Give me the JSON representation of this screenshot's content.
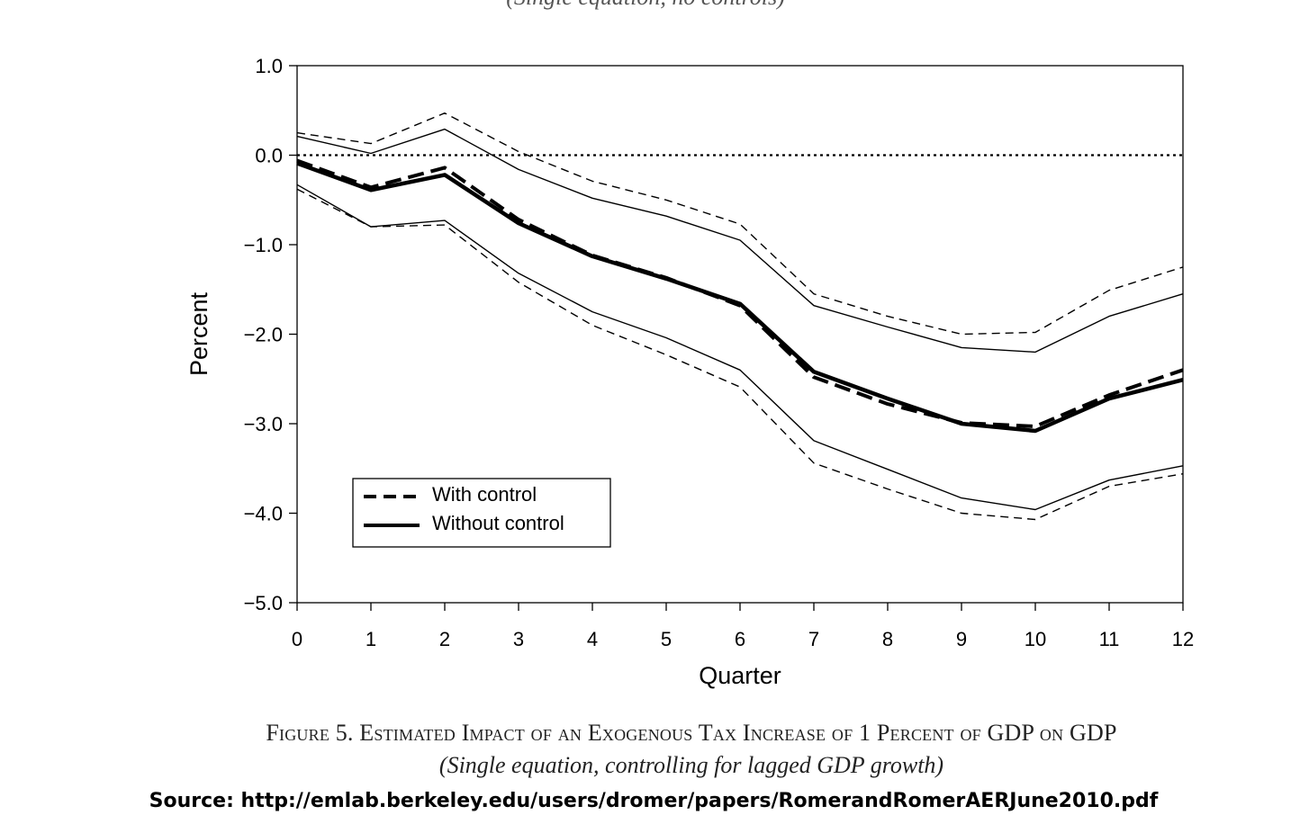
{
  "top_caption": "(Single equation, no controls)",
  "figure_caption": "Figure 5. Estimated Impact of an Exogenous Tax Increase of 1 Percent of GDP on GDP",
  "figure_subcaption": "(Single equation, controlling for lagged GDP growth)",
  "source": "Source: http://emlab.berkeley.edu/users/dromer/papers/RomerandRomerAERJune2010.pdf",
  "chart_data": {
    "type": "line",
    "title": "",
    "xlabel": "Quarter",
    "ylabel": "Percent",
    "xlim": [
      0,
      12
    ],
    "ylim": [
      -5.0,
      1.0
    ],
    "x": [
      0,
      1,
      2,
      3,
      4,
      5,
      6,
      7,
      8,
      9,
      10,
      11,
      12
    ],
    "x_ticks": [
      "0",
      "1",
      "2",
      "3",
      "4",
      "5",
      "6",
      "7",
      "8",
      "9",
      "10",
      "11",
      "12"
    ],
    "y_ticks": [
      1.0,
      0.0,
      -1.0,
      -2.0,
      -3.0,
      -4.0,
      -5.0
    ],
    "y_tick_labels": [
      "1.0",
      "0.0",
      "−1.0",
      "−2.0",
      "−3.0",
      "−4.0",
      "−5.0"
    ],
    "reference_line": 0.0,
    "legend_position": "lower-left",
    "series": [
      {
        "name": "With control",
        "style": "dashed",
        "weight": "heavy",
        "values": [
          -0.06,
          -0.36,
          -0.14,
          -0.72,
          -1.12,
          -1.37,
          -1.68,
          -2.48,
          -2.78,
          -2.99,
          -3.03,
          -2.68,
          -2.4
        ]
      },
      {
        "name": "Without control",
        "style": "solid",
        "weight": "heavy",
        "values": [
          -0.09,
          -0.39,
          -0.22,
          -0.76,
          -1.13,
          -1.38,
          -1.66,
          -2.42,
          -2.72,
          -3.0,
          -3.08,
          -2.72,
          -2.51
        ]
      },
      {
        "name": "",
        "style": "dashed",
        "weight": "thin",
        "values": [
          0.25,
          0.13,
          0.47,
          0.04,
          -0.29,
          -0.5,
          -0.77,
          -1.55,
          -1.8,
          -2.0,
          -1.98,
          -1.51,
          -1.25
        ]
      },
      {
        "name": "",
        "style": "solid",
        "weight": "thin",
        "values": [
          0.21,
          0.02,
          0.29,
          -0.16,
          -0.48,
          -0.68,
          -0.95,
          -1.68,
          -1.92,
          -2.15,
          -2.2,
          -1.8,
          -1.55
        ]
      },
      {
        "name": "",
        "style": "solid",
        "weight": "thin",
        "values": [
          -0.33,
          -0.8,
          -0.73,
          -1.32,
          -1.75,
          -2.04,
          -2.4,
          -3.19,
          -3.51,
          -3.83,
          -3.96,
          -3.63,
          -3.47
        ]
      },
      {
        "name": "",
        "style": "dashed",
        "weight": "thin",
        "values": [
          -0.38,
          -0.8,
          -0.78,
          -1.42,
          -1.9,
          -2.23,
          -2.59,
          -3.44,
          -3.73,
          -4.0,
          -4.07,
          -3.7,
          -3.56
        ]
      }
    ]
  }
}
